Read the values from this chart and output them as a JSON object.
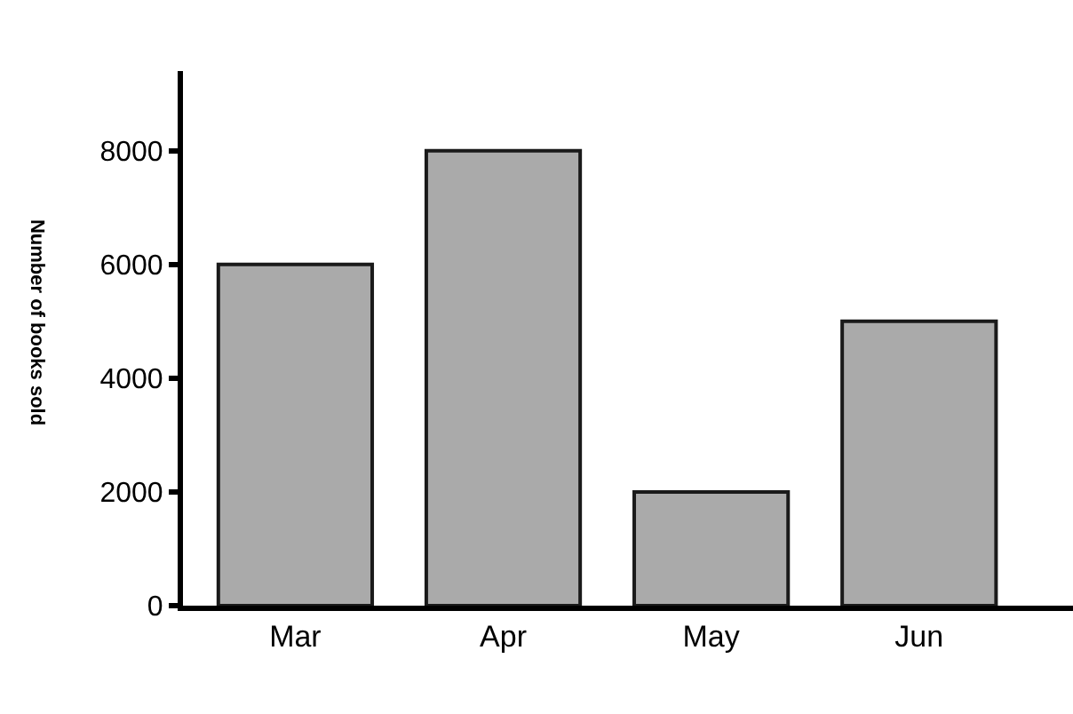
{
  "chart_data": {
    "type": "bar",
    "categories": [
      "Mar",
      "Apr",
      "May",
      "Jun"
    ],
    "values": [
      6000,
      8000,
      2000,
      5000
    ],
    "color": "#aaaaaa",
    "ylabel": "Number of books sold",
    "ylim": [
      0,
      9400
    ],
    "yticks": [
      0,
      2000,
      4000,
      6000,
      8000
    ]
  }
}
